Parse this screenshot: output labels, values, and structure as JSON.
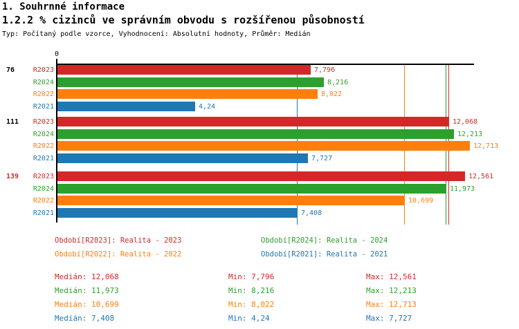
{
  "header": {
    "title1": "1. Souhrnné informace",
    "title2": "1.2.2 % cizinců ve správním obvodu s rozšířenou působností",
    "subtitle": "Typ: Počítaný podle vzorce, Vyhodnocení: Absolutní hodnoty, Průměr: Medián"
  },
  "colors": {
    "R2023": "#d62728",
    "R2024": "#2ca02c",
    "R2022": "#ff7f0e",
    "R2021": "#1f77b4",
    "axis": "#000000"
  },
  "chart_data": {
    "type": "bar",
    "orientation": "horizontal",
    "x_axis": {
      "min": 0,
      "max": 12.86,
      "zero_label": "0",
      "grid": false
    },
    "series_order": [
      "R2023",
      "R2024",
      "R2022",
      "R2021"
    ],
    "groups": [
      {
        "label": "76",
        "label_color": "#000000",
        "bars": [
          {
            "series": "R2023",
            "value": 7.796,
            "label": "7,796"
          },
          {
            "series": "R2024",
            "value": 8.216,
            "label": "8,216"
          },
          {
            "series": "R2022",
            "value": 8.022,
            "label": "8,022"
          },
          {
            "series": "R2021",
            "value": 4.24,
            "label": "4,24"
          }
        ]
      },
      {
        "label": "111",
        "label_color": "#000000",
        "bars": [
          {
            "series": "R2023",
            "value": 12.068,
            "label": "12,068"
          },
          {
            "series": "R2024",
            "value": 12.213,
            "label": "12,213"
          },
          {
            "series": "R2022",
            "value": 12.713,
            "label": "12,713"
          },
          {
            "series": "R2021",
            "value": 7.727,
            "label": "7,727"
          }
        ]
      },
      {
        "label": "139",
        "label_color": "#d62728",
        "bars": [
          {
            "series": "R2023",
            "value": 12.561,
            "label": "12,561"
          },
          {
            "series": "R2024",
            "value": 11.973,
            "label": "11,973"
          },
          {
            "series": "R2022",
            "value": 10.699,
            "label": "10,699"
          },
          {
            "series": "R2021",
            "value": 7.408,
            "label": "7,408"
          }
        ]
      }
    ],
    "median_lines": [
      {
        "series": "R2023",
        "value": 12.068
      },
      {
        "series": "R2024",
        "value": 11.973
      },
      {
        "series": "R2022",
        "value": 10.699
      },
      {
        "series": "R2021",
        "value": 7.408
      }
    ]
  },
  "legend": [
    {
      "series": "R2023",
      "text": "Období[R2023]: Realita - 2023",
      "color": "#d62728"
    },
    {
      "series": "R2024",
      "text": "Období[R2024]: Realita - 2024",
      "color": "#2ca02c"
    },
    {
      "series": "R2022",
      "text": "Období[R2022]: Realita - 2022",
      "color": "#ff7f0e"
    },
    {
      "series": "R2021",
      "text": "Období[R2021]: Realita - 2021",
      "color": "#1f77b4"
    }
  ],
  "stats": [
    {
      "series": "R2023",
      "color": "#d62728",
      "median": "Medián: 12,068",
      "min": "Min: 7,796",
      "max": "Max: 12,561"
    },
    {
      "series": "R2024",
      "color": "#2ca02c",
      "median": "Medián: 11,973",
      "min": "Min: 8,216",
      "max": "Max: 12,213"
    },
    {
      "series": "R2022",
      "color": "#ff7f0e",
      "median": "Medián: 10,699",
      "min": "Min: 8,022",
      "max": "Max: 12,713"
    },
    {
      "series": "R2021",
      "color": "#1f77b4",
      "median": "Medián: 7,408",
      "min": "Min: 4,24",
      "max": "Max: 7,727"
    }
  ]
}
